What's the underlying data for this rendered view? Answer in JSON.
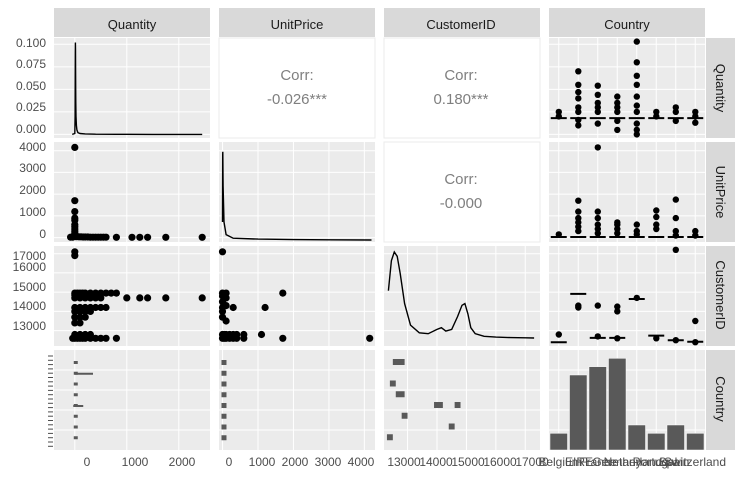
{
  "colors": {
    "panel_bg": "#ebebeb",
    "grid_major": "#ffffff",
    "strip_bg": "#d9d9d9",
    "ink": "#000000",
    "bar_fill": "#595959",
    "corr_text": "#7f7f7f",
    "tick_text": "#4d4d4d",
    "strip_text": "#1a1a1a"
  },
  "chart_data": {
    "type": "scatter",
    "subtype": "pairs-matrix",
    "variables": [
      "Quantity",
      "UnitPrice",
      "CustomerID",
      "Country"
    ],
    "column_strips": [
      "Quantity",
      "UnitPrice",
      "CustomerID",
      "Country"
    ],
    "row_strips": [
      "Quantity",
      "UnitPrice",
      "CustomerID",
      "Country"
    ],
    "correlations": [
      {
        "row": 0,
        "col": 1,
        "label": "Corr:",
        "value": "-0.026***"
      },
      {
        "row": 0,
        "col": 2,
        "label": "Corr:",
        "value": "0.180***"
      },
      {
        "row": 1,
        "col": 2,
        "label": "Corr:",
        "value": "-0.000"
      }
    ],
    "x_axes": [
      {
        "variable": "Quantity",
        "range": [
          -400,
          2600
        ],
        "ticks": [
          0,
          1000,
          2000
        ],
        "tick_labels": [
          "0",
          "1000",
          "2000"
        ]
      },
      {
        "variable": "UnitPrice",
        "range": [
          -100,
          4300
        ],
        "ticks": [
          0,
          1000,
          2000,
          3000,
          4000
        ],
        "tick_labels": [
          "0",
          "1000",
          "2000",
          "3000",
          "4000"
        ]
      },
      {
        "variable": "CustomerID",
        "range": [
          12200,
          17500
        ],
        "ticks": [
          13000,
          14000,
          15000,
          16000,
          17000
        ],
        "tick_labels": [
          "13000",
          "14000",
          "15000",
          "16000",
          "17000"
        ]
      },
      {
        "variable": "Country",
        "categories": [
          "Belgium",
          "EIRE",
          "France",
          "Germany",
          "Netherlands",
          "Portugal",
          "Spain",
          "Switzerland"
        ],
        "tick_labels": [
          "Belgium",
          "EIRE",
          "France",
          "Germany",
          "Netherlands",
          "Portugal",
          "Spain",
          "Switzerland"
        ]
      }
    ],
    "y_axes": [
      {
        "variable": "Quantity density",
        "range": [
          -0.004,
          0.107
        ],
        "ticks": [
          0,
          0.025,
          0.05,
          0.075,
          0.1
        ],
        "tick_labels": [
          "0.000",
          "0.025",
          "0.050",
          "0.075",
          "0.100"
        ]
      },
      {
        "variable": "UnitPrice",
        "range": [
          -200,
          4400
        ],
        "ticks": [
          0,
          1000,
          2000,
          3000,
          4000
        ],
        "tick_labels": [
          "0",
          "1000",
          "2000",
          "3000",
          "4000"
        ]
      },
      {
        "variable": "CustomerID",
        "range": [
          12200,
          17400
        ],
        "ticks": [
          13000,
          14000,
          15000,
          16000,
          17000
        ],
        "tick_labels": [
          "13000",
          "14000",
          "15000",
          "16000",
          "17000"
        ]
      }
    ],
    "quantity_density": {
      "x": [
        -50,
        0,
        5,
        8,
        10,
        12,
        14,
        16,
        18,
        20,
        24,
        30,
        40,
        60,
        100,
        200,
        400,
        800,
        1500,
        2450
      ],
      "y": [
        0,
        0.001,
        0.02,
        0.06,
        0.09,
        0.102,
        0.095,
        0.07,
        0.05,
        0.035,
        0.02,
        0.01,
        0.005,
        0.002,
        0.001,
        0.0005,
        0.0002,
        0.0001,
        0,
        0
      ]
    },
    "unitprice_density": {
      "x": [
        0,
        3,
        8,
        15,
        40,
        100,
        300,
        1000,
        2000,
        3000,
        4200
      ],
      "y_relative": [
        0.2,
        0.95,
        0.98,
        0.6,
        0.2,
        0.06,
        0.02,
        0.01,
        0.005,
        0.002,
        0
      ]
    },
    "customerid_density": {
      "x": [
        12350,
        12450,
        12550,
        12650,
        12750,
        12900,
        13100,
        13400,
        13700,
        14000,
        14150,
        14300,
        14500,
        14700,
        14850,
        14950,
        15050,
        15150,
        15300,
        15600,
        16000,
        16500,
        17000,
        17300
      ],
      "y_relative": [
        0.55,
        0.9,
        1.0,
        0.95,
        0.75,
        0.4,
        0.15,
        0.06,
        0.05,
        0.1,
        0.12,
        0.08,
        0.1,
        0.25,
        0.38,
        0.4,
        0.28,
        0.12,
        0.05,
        0.02,
        0.01,
        0.005,
        0.002,
        0
      ]
    },
    "scatter_quantity_unitprice": [
      [
        0,
        4150
      ],
      [
        0,
        1700
      ],
      [
        0,
        1200
      ],
      [
        0,
        900
      ],
      [
        0,
        800
      ],
      [
        0,
        600
      ],
      [
        0,
        500
      ],
      [
        0,
        400
      ],
      [
        0,
        300
      ],
      [
        0,
        200
      ],
      [
        0,
        150
      ],
      [
        0,
        100
      ],
      [
        0,
        60
      ],
      [
        20,
        50
      ],
      [
        40,
        50
      ],
      [
        80,
        40
      ],
      [
        120,
        40
      ],
      [
        160,
        30
      ],
      [
        200,
        30
      ],
      [
        250,
        30
      ],
      [
        300,
        20
      ],
      [
        350,
        20
      ],
      [
        400,
        20
      ],
      [
        450,
        20
      ],
      [
        500,
        20
      ],
      [
        550,
        20
      ],
      [
        600,
        20
      ],
      [
        800,
        15
      ],
      [
        1100,
        15
      ],
      [
        1250,
        15
      ],
      [
        1400,
        15
      ],
      [
        1750,
        15
      ],
      [
        2450,
        15
      ],
      [
        -40,
        20
      ],
      [
        -80,
        20
      ]
    ],
    "scatter_quantity_customerid": [
      [
        0,
        17100
      ],
      [
        0,
        16900
      ],
      [
        0,
        14950
      ],
      [
        50,
        14950
      ],
      [
        100,
        14950
      ],
      [
        150,
        14950
      ],
      [
        200,
        14950
      ],
      [
        300,
        14950
      ],
      [
        400,
        14950
      ],
      [
        500,
        14950
      ],
      [
        600,
        14950
      ],
      [
        700,
        14950
      ],
      [
        800,
        14950
      ],
      [
        0,
        14850
      ],
      [
        100,
        14850
      ],
      [
        200,
        14850
      ],
      [
        300,
        14850
      ],
      [
        400,
        14850
      ],
      [
        0,
        14700
      ],
      [
        100,
        14700
      ],
      [
        200,
        14700
      ],
      [
        300,
        14700
      ],
      [
        400,
        14700
      ],
      [
        500,
        14700
      ],
      [
        1000,
        14700
      ],
      [
        1250,
        14700
      ],
      [
        1400,
        14700
      ],
      [
        1750,
        14700
      ],
      [
        2450,
        14700
      ],
      [
        0,
        14200
      ],
      [
        100,
        14200
      ],
      [
        200,
        14200
      ],
      [
        300,
        14200
      ],
      [
        400,
        14200
      ],
      [
        500,
        14200
      ],
      [
        600,
        14200
      ],
      [
        0,
        14000
      ],
      [
        100,
        14000
      ],
      [
        200,
        14000
      ],
      [
        300,
        14000
      ],
      [
        0,
        13700
      ],
      [
        100,
        13700
      ],
      [
        200,
        13700
      ],
      [
        0,
        13400
      ],
      [
        100,
        13400
      ],
      [
        0,
        12800
      ],
      [
        100,
        12800
      ],
      [
        200,
        12800
      ],
      [
        300,
        12800
      ],
      [
        -40,
        12600
      ],
      [
        0,
        12600
      ],
      [
        50,
        12600
      ],
      [
        100,
        12600
      ],
      [
        150,
        12600
      ],
      [
        200,
        12600
      ],
      [
        300,
        12600
      ],
      [
        400,
        12600
      ],
      [
        500,
        12600
      ],
      [
        600,
        12600
      ],
      [
        800,
        12600
      ]
    ],
    "scatter_unitprice_customerid": [
      [
        0,
        17100
      ],
      [
        0,
        14950
      ],
      [
        100,
        14950
      ],
      [
        0,
        14800
      ],
      [
        100,
        14700
      ],
      [
        0,
        14500
      ],
      [
        100,
        14300
      ],
      [
        0,
        14200
      ],
      [
        300,
        14200
      ],
      [
        0,
        14000
      ],
      [
        0,
        13700
      ],
      [
        100,
        13500
      ],
      [
        1200,
        14200
      ],
      [
        1700,
        14950
      ],
      [
        1100,
        12800
      ],
      [
        1700,
        12600
      ],
      [
        4150,
        12600
      ],
      [
        0,
        12800
      ],
      [
        50,
        12800
      ],
      [
        100,
        12800
      ],
      [
        200,
        12800
      ],
      [
        300,
        12800
      ],
      [
        400,
        12800
      ],
      [
        600,
        12800
      ],
      [
        0,
        12600
      ],
      [
        50,
        12600
      ],
      [
        100,
        12600
      ],
      [
        200,
        12600
      ],
      [
        300,
        12600
      ],
      [
        400,
        12600
      ],
      [
        600,
        12600
      ]
    ],
    "country_quantity_strip": {
      "medians": [
        0.018,
        0.018,
        0.018,
        0.018,
        0.018,
        0.018,
        0.018,
        0.018
      ],
      "points": [
        [
          0,
          0.02
        ],
        [
          0,
          0.025
        ],
        [
          1,
          0.04
        ],
        [
          1,
          0.047
        ],
        [
          1,
          0.055
        ],
        [
          1,
          0.03
        ],
        [
          1,
          0.025
        ],
        [
          1,
          0.016
        ],
        [
          1,
          0.07
        ],
        [
          1,
          0.01
        ],
        [
          2,
          0.035
        ],
        [
          2,
          0.044
        ],
        [
          2,
          0.054
        ],
        [
          2,
          0.03
        ],
        [
          2,
          0.012
        ],
        [
          2,
          0.025
        ],
        [
          3,
          0.035
        ],
        [
          3,
          0.042
        ],
        [
          3,
          0.03
        ],
        [
          3,
          0.005
        ],
        [
          3,
          0.015
        ],
        [
          3,
          0.025
        ],
        [
          4,
          0.103
        ],
        [
          4,
          0.08
        ],
        [
          4,
          0.055
        ],
        [
          4,
          0.042
        ],
        [
          4,
          0.032
        ],
        [
          4,
          0.025
        ],
        [
          4,
          0.012
        ],
        [
          4,
          0.005
        ],
        [
          4,
          0
        ],
        [
          4,
          0.065
        ],
        [
          5,
          0.02
        ],
        [
          5,
          0.025
        ],
        [
          6,
          0.025
        ],
        [
          6,
          0.03
        ],
        [
          6,
          0.015
        ],
        [
          7,
          0.025
        ],
        [
          7,
          0.02
        ],
        [
          7,
          0.013
        ]
      ]
    },
    "country_unitprice_strip": {
      "medians": [
        30,
        30,
        30,
        30,
        30,
        30,
        30,
        30
      ],
      "points": [
        [
          0,
          150
        ],
        [
          1,
          1700
        ],
        [
          1,
          1200
        ],
        [
          1,
          900
        ],
        [
          1,
          700
        ],
        [
          1,
          500
        ],
        [
          1,
          300
        ],
        [
          2,
          4150
        ],
        [
          2,
          1200
        ],
        [
          2,
          900
        ],
        [
          2,
          600
        ],
        [
          2,
          400
        ],
        [
          2,
          200
        ],
        [
          3,
          700
        ],
        [
          3,
          600
        ],
        [
          3,
          400
        ],
        [
          3,
          200
        ],
        [
          4,
          600
        ],
        [
          4,
          300
        ],
        [
          4,
          150
        ],
        [
          5,
          1250
        ],
        [
          5,
          950
        ],
        [
          5,
          600
        ],
        [
          5,
          400
        ],
        [
          6,
          1750
        ],
        [
          6,
          900
        ],
        [
          6,
          300
        ],
        [
          6,
          100
        ],
        [
          7,
          300
        ],
        [
          7,
          100
        ]
      ]
    },
    "country_customerid_medians": [
      12395,
      14911,
      12620,
      12620,
      14646,
      12742,
      12500,
      12420
    ],
    "country_customerid_points": [
      [
        0,
        12800
      ],
      [
        1,
        14300
      ],
      [
        1,
        14200
      ],
      [
        2,
        14300
      ],
      [
        2,
        12700
      ],
      [
        3,
        14250
      ],
      [
        3,
        14000
      ],
      [
        3,
        12600
      ],
      [
        4,
        14700
      ],
      [
        5,
        12600
      ],
      [
        6,
        17200
      ],
      [
        6,
        12500
      ],
      [
        7,
        13500
      ],
      [
        7,
        12400
      ]
    ],
    "country_counts": [
      2,
      9,
      10,
      11,
      3,
      2,
      3,
      2
    ],
    "country_counts_ylim": [
      0,
      12
    ]
  }
}
